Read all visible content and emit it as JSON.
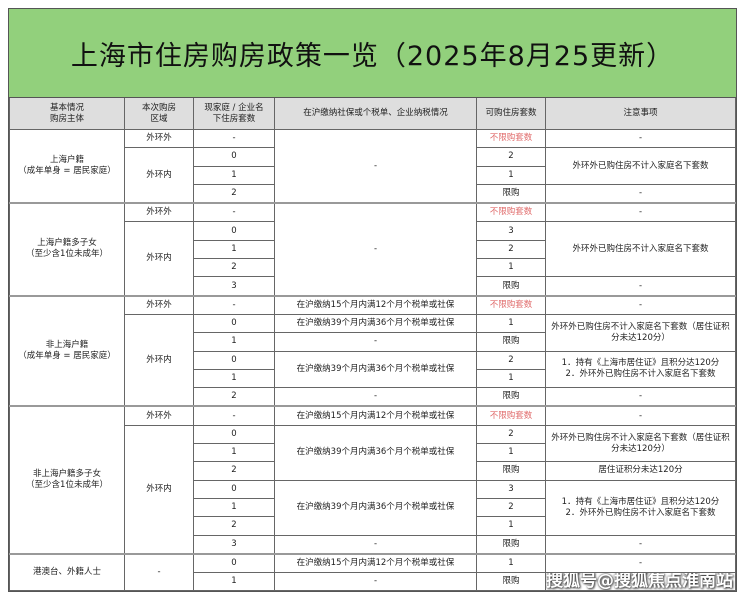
{
  "title": "上海市住房购房政策一览（2025年8月25更新）",
  "headers": [
    "基本情况\n购房主体",
    "本次购房\n区域",
    "现家庭 / 企业名\n下住房套数",
    "在沪缴纳社保或个税单、企业纳税情况",
    "可购住房套数",
    "注意事项"
  ],
  "colors": {
    "title_bg": "#92d07c",
    "header_bg": "#dedede",
    "unlimited_text": "#e06a6a"
  },
  "rows": [
    [
      {
        "t": "上海户籍\n（成年单身 = 居民家庭）",
        "rs": 4
      },
      {
        "t": "外环外"
      },
      {
        "t": "-"
      },
      {
        "t": "-",
        "rs": 4
      },
      {
        "t": "不限购套数",
        "red": true
      },
      {
        "t": "-"
      }
    ],
    [
      {
        "t": "外环内",
        "rs": 3
      },
      {
        "t": "0"
      },
      {
        "t": "2"
      },
      {
        "t": "外环外已购住房不计入家庭名下套数",
        "rs": 2
      }
    ],
    [
      {
        "t": "1"
      },
      {
        "t": "1"
      }
    ],
    [
      {
        "t": "2"
      },
      {
        "t": "限购"
      },
      {
        "t": "-"
      }
    ],
    [
      {
        "t": "上海户籍多子女\n（至少含1位未成年）",
        "rs": 5
      },
      {
        "t": "外环外"
      },
      {
        "t": "-"
      },
      {
        "t": "-",
        "rs": 5
      },
      {
        "t": "不限购套数",
        "red": true
      },
      {
        "t": "-"
      }
    ],
    [
      {
        "t": "外环内",
        "rs": 4
      },
      {
        "t": "0"
      },
      {
        "t": "3"
      },
      {
        "t": "外环外已购住房不计入家庭名下套数",
        "rs": 3
      }
    ],
    [
      {
        "t": "1"
      },
      {
        "t": "2"
      }
    ],
    [
      {
        "t": "2"
      },
      {
        "t": "1"
      }
    ],
    [
      {
        "t": "3"
      },
      {
        "t": "限购"
      },
      {
        "t": "-"
      }
    ],
    [
      {
        "t": "非上海户籍\n（成年单身 = 居民家庭）",
        "rs": 6
      },
      {
        "t": "外环外"
      },
      {
        "t": "-"
      },
      {
        "t": "在沪缴纳15个月内满12个月个税单或社保"
      },
      {
        "t": "不限购套数",
        "red": true
      },
      {
        "t": "-"
      }
    ],
    [
      {
        "t": "外环内",
        "rs": 5
      },
      {
        "t": "0"
      },
      {
        "t": "在沪缴纳39个月内满36个月个税单或社保"
      },
      {
        "t": "1"
      },
      {
        "t": "外环外已购住房不计入家庭名下套数（居住证积分未达120分）",
        "rs": 2
      }
    ],
    [
      {
        "t": "1"
      },
      {
        "t": "-"
      },
      {
        "t": "限购"
      }
    ],
    [
      {
        "t": "0"
      },
      {
        "t": "在沪缴纳39个月内满36个月个税单或社保",
        "rs": 2
      },
      {
        "t": "2"
      },
      {
        "t": "1．持有《上海市居住证》且积分达120分\n2．外环外已购住房不计入家庭名下套数",
        "rs": 2
      }
    ],
    [
      {
        "t": "1"
      },
      {
        "t": "1"
      }
    ],
    [
      {
        "t": "2"
      },
      {
        "t": "-"
      },
      {
        "t": "限购"
      },
      {
        "t": "-"
      }
    ],
    [
      {
        "t": "非上海户籍多子女\n（至少含1位未成年）",
        "rs": 8
      },
      {
        "t": "外环外"
      },
      {
        "t": "-"
      },
      {
        "t": "在沪缴纳15个月内满12个月个税单或社保"
      },
      {
        "t": "不限购套数",
        "red": true
      },
      {
        "t": "-"
      }
    ],
    [
      {
        "t": "外环内",
        "rs": 7
      },
      {
        "t": "0"
      },
      {
        "t": "在沪缴纳39个月内满36个月个税单或社保",
        "rs": 3
      },
      {
        "t": "2"
      },
      {
        "t": "外环外已购住房不计入家庭名下套数（居住证积分未达120分）",
        "rs": 2
      }
    ],
    [
      {
        "t": "1"
      },
      {
        "t": "1"
      }
    ],
    [
      {
        "t": "2"
      },
      {
        "t": "限购"
      },
      {
        "t": "居住证积分未达120分"
      }
    ],
    [
      {
        "t": "0"
      },
      {
        "t": "在沪缴纳39个月内满36个月个税单或社保",
        "rs": 3
      },
      {
        "t": "3"
      },
      {
        "t": "1．持有《上海市居住证》且积分达120分\n2．外环外已购住房不计入家庭名下套数",
        "rs": 3
      }
    ],
    [
      {
        "t": "1"
      },
      {
        "t": "2"
      }
    ],
    [
      {
        "t": "2"
      },
      {
        "t": "1"
      }
    ],
    [
      {
        "t": "3"
      },
      {
        "t": "-"
      },
      {
        "t": "限购"
      },
      {
        "t": "-"
      }
    ],
    [
      {
        "t": "港澳台、外籍人士",
        "rs": 2
      },
      {
        "t": "-",
        "rs": 2
      },
      {
        "t": "0"
      },
      {
        "t": "在沪缴纳15个月内满12个月个税单或社保"
      },
      {
        "t": "1"
      },
      {
        "t": "-"
      }
    ],
    [
      {
        "t": "1"
      },
      {
        "t": "-"
      },
      {
        "t": "限购"
      },
      {
        "t": ""
      }
    ]
  ],
  "watermark": "搜狐号@搜狐焦点淮南站"
}
